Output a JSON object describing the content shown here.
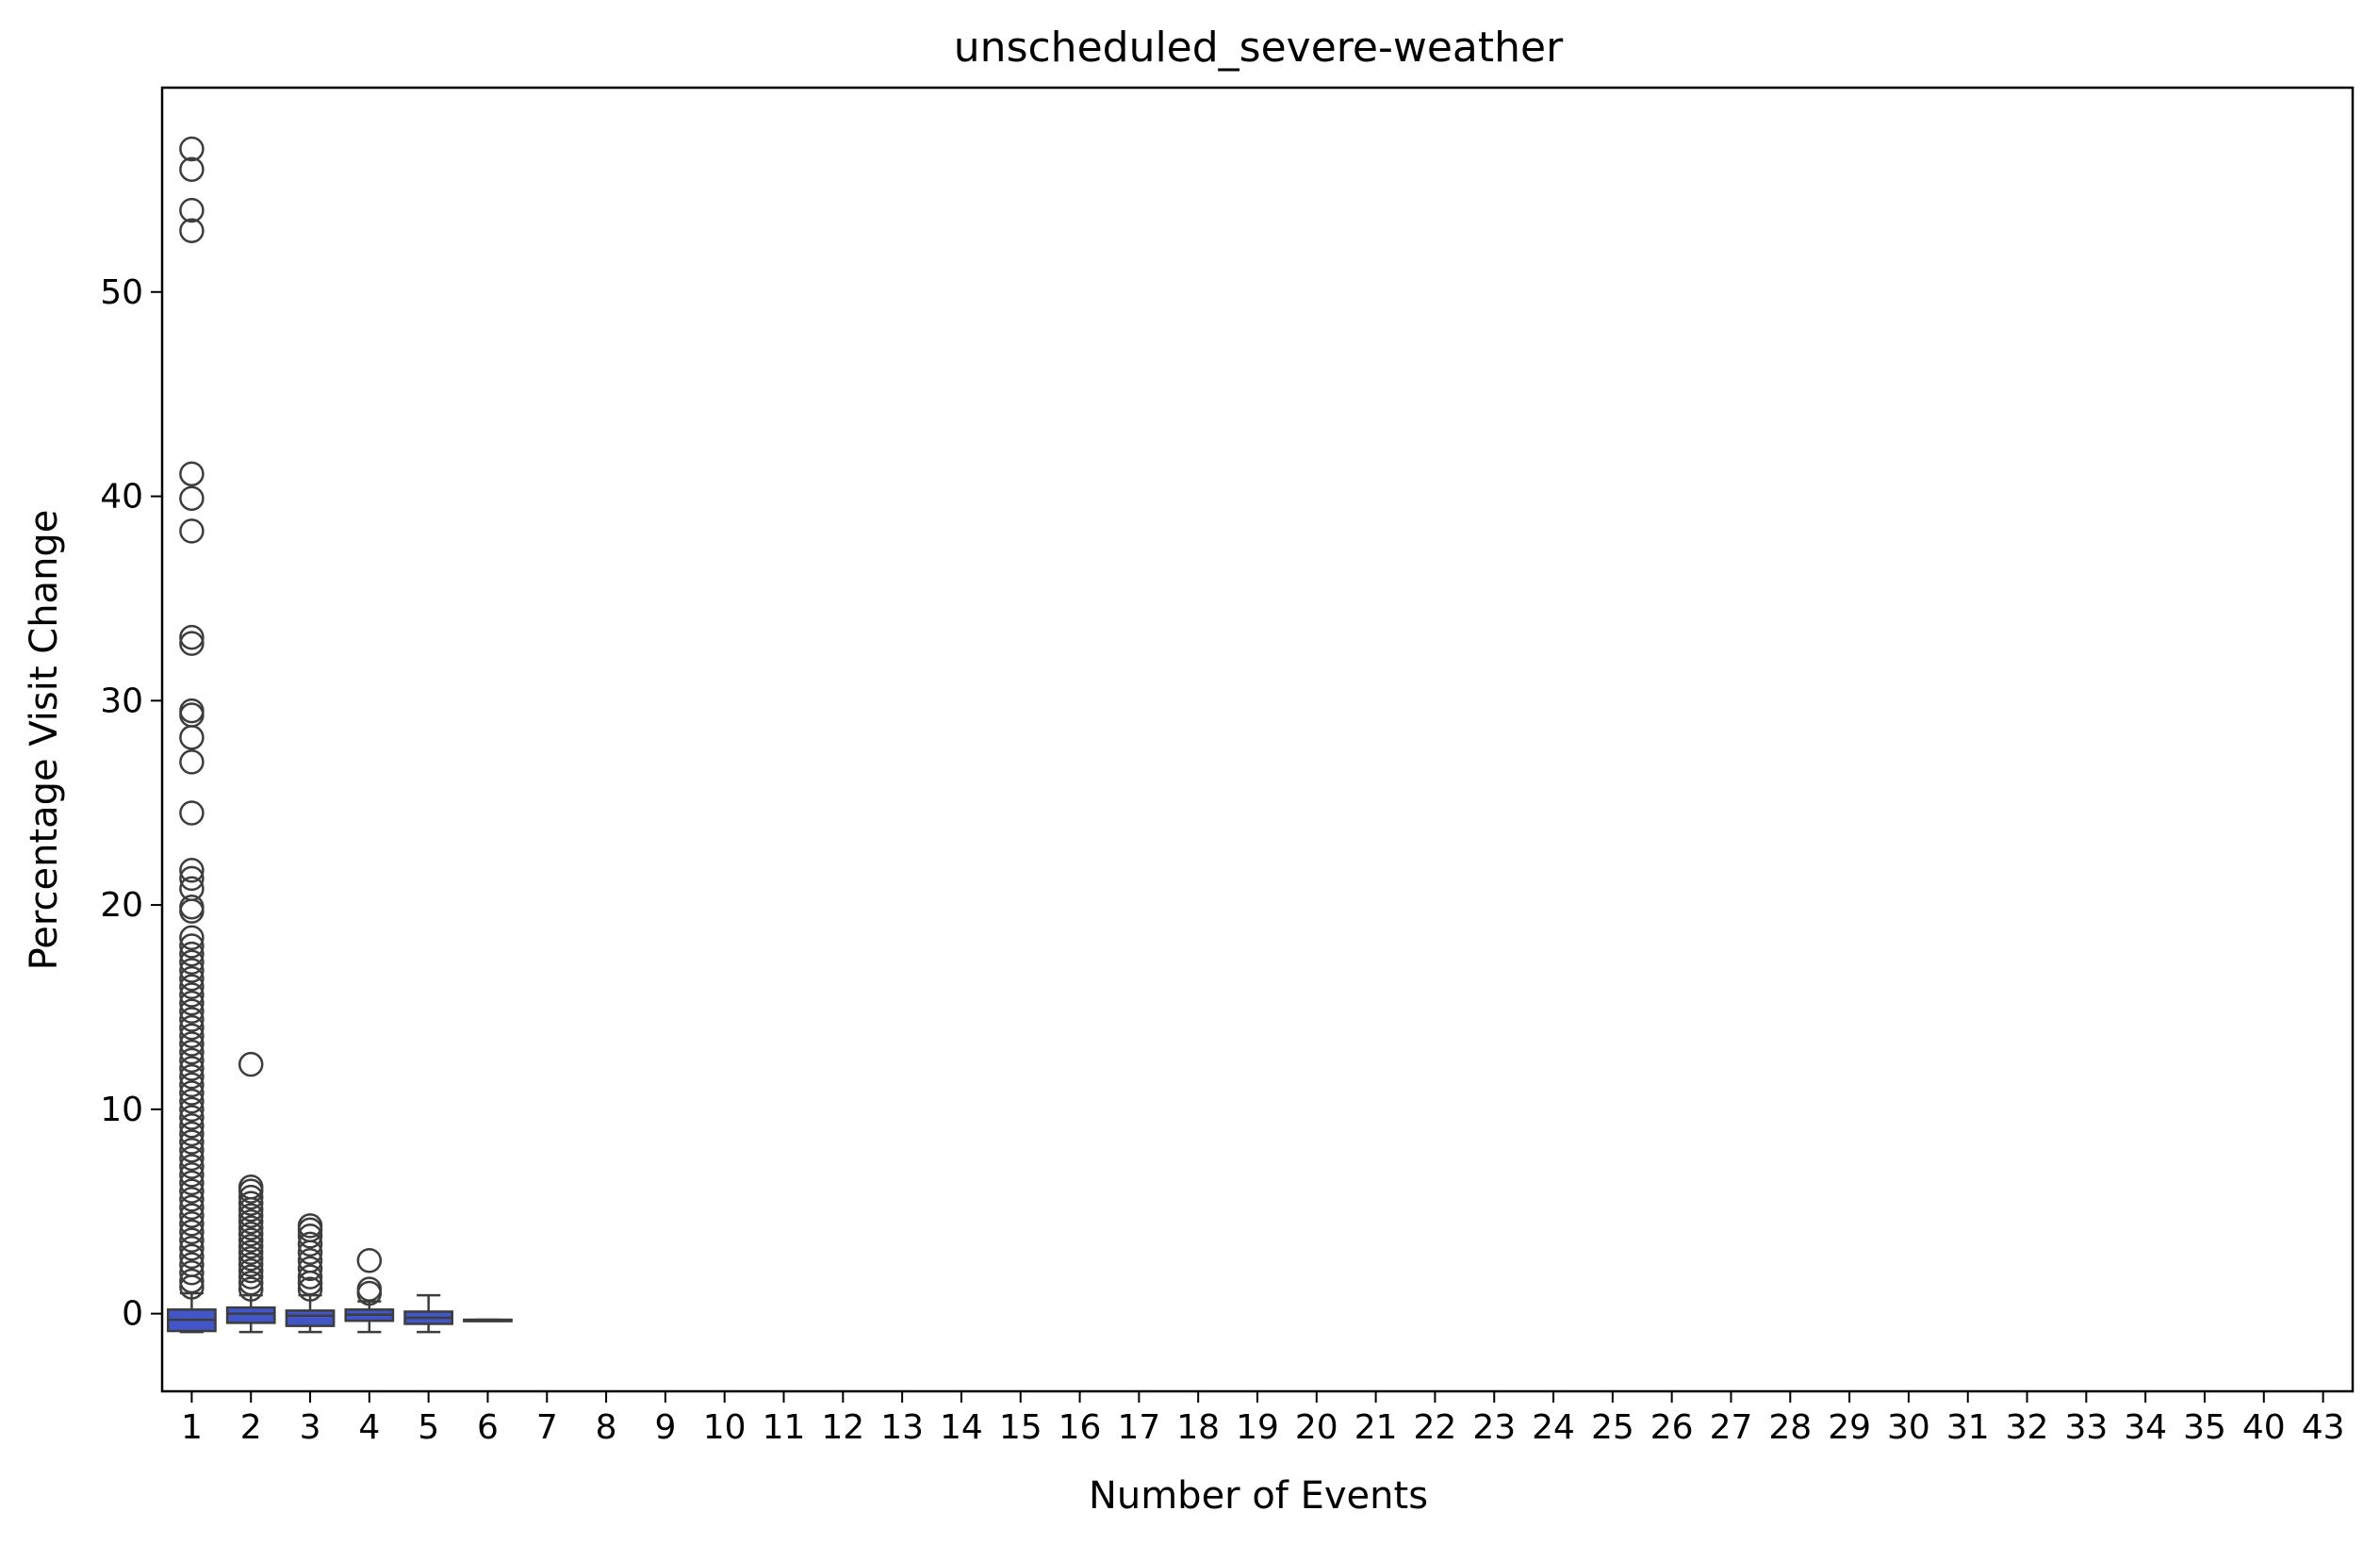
{
  "chart_data": {
    "type": "box",
    "title": "unscheduled_severe-weather",
    "xlabel": "Number of Events",
    "ylabel": "Percentage Visit Change",
    "categories": [
      "1",
      "2",
      "3",
      "4",
      "5",
      "6",
      "7",
      "8",
      "9",
      "10",
      "11",
      "12",
      "13",
      "14",
      "15",
      "16",
      "17",
      "18",
      "19",
      "20",
      "21",
      "22",
      "23",
      "24",
      "25",
      "26",
      "27",
      "28",
      "29",
      "30",
      "31",
      "32",
      "33",
      "34",
      "35",
      "40",
      "43"
    ],
    "yticks": [
      0,
      10,
      20,
      30,
      40,
      50
    ],
    "ylim": [
      -3.8,
      60.0
    ],
    "grid": false,
    "box_color": "#4356c8",
    "edge_color": "#3d3d3d",
    "boxes": [
      {
        "category": "1",
        "whisker_low": -0.9,
        "q1": -0.85,
        "median": -0.3,
        "q3": 0.2,
        "whisker_high": 1.0,
        "outliers": [
          57.0,
          56.0,
          54.0,
          53.0,
          41.1,
          39.9,
          38.3,
          33.1,
          32.8,
          29.5,
          29.3,
          28.2,
          27.0,
          24.5,
          21.7,
          21.3,
          20.8,
          19.9,
          19.7,
          18.4,
          18.0,
          17.6,
          17.2,
          16.8,
          16.4,
          16.0,
          15.6,
          15.2,
          14.8,
          14.4,
          14.0,
          13.6,
          13.2,
          12.8,
          12.4,
          12.0,
          11.6,
          11.2,
          10.8,
          10.4,
          10.0,
          9.6,
          9.2,
          8.8,
          8.4,
          8.0,
          7.6,
          7.2,
          6.8,
          6.4,
          6.0,
          5.6,
          5.2,
          4.8,
          4.4,
          4.0,
          3.6,
          3.2,
          2.8,
          2.4,
          2.0,
          1.6,
          1.3
        ]
      },
      {
        "category": "2",
        "whisker_low": -0.9,
        "q1": -0.45,
        "median": 0.0,
        "q3": 0.3,
        "whisker_high": 0.9,
        "outliers": [
          12.2,
          6.2,
          6.0,
          5.7,
          5.4,
          5.1,
          4.8,
          4.5,
          4.2,
          3.9,
          3.6,
          3.3,
          3.0,
          2.7,
          2.4,
          2.1,
          1.8,
          1.5,
          1.2
        ]
      },
      {
        "category": "3",
        "whisker_low": -0.9,
        "q1": -0.6,
        "median": -0.1,
        "q3": 0.15,
        "whisker_high": 0.9,
        "outliers": [
          4.3,
          4.1,
          3.8,
          3.4,
          3.0,
          2.6,
          2.2,
          1.8,
          1.5,
          1.2
        ]
      },
      {
        "category": "4",
        "whisker_low": -0.9,
        "q1": -0.35,
        "median": -0.05,
        "q3": 0.2,
        "whisker_high": 0.6,
        "outliers": [
          2.6,
          1.2,
          1.0
        ]
      },
      {
        "category": "5",
        "whisker_low": -0.9,
        "q1": -0.5,
        "median": -0.2,
        "q3": 0.1,
        "whisker_high": 0.9,
        "outliers": []
      },
      {
        "category": "6",
        "whisker_low": -0.3,
        "q1": -0.3,
        "median": -0.3,
        "q3": -0.3,
        "whisker_high": -0.3,
        "outliers": []
      }
    ]
  }
}
